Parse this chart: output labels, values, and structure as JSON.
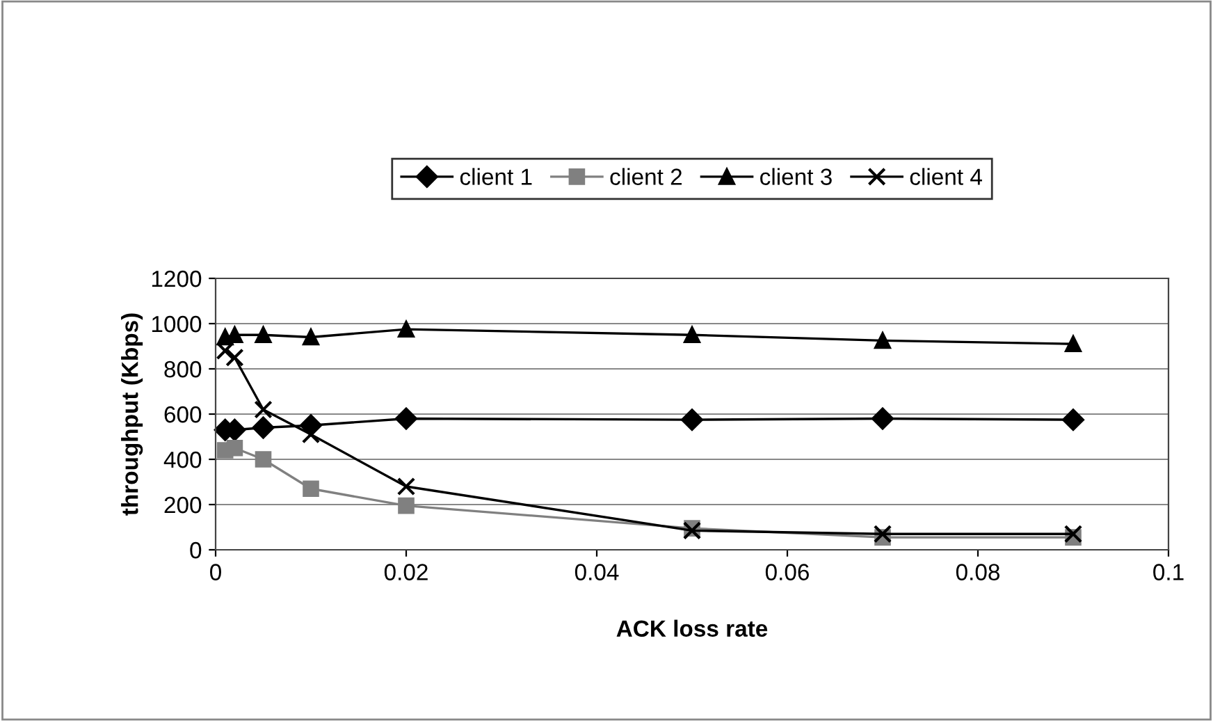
{
  "chart_data": {
    "type": "line",
    "xlabel": "ACK loss rate",
    "ylabel": "throughput (Kbps)",
    "x": [
      0.001,
      0.002,
      0.005,
      0.01,
      0.02,
      0.05,
      0.07,
      0.09
    ],
    "series": [
      {
        "name": "client 1",
        "color": "#000000",
        "marker": "diamond",
        "values": [
          530,
          530,
          540,
          550,
          580,
          575,
          580,
          575
        ]
      },
      {
        "name": "client 2",
        "color": "#808080",
        "marker": "square",
        "values": [
          440,
          450,
          400,
          270,
          195,
          95,
          55,
          55
        ]
      },
      {
        "name": "client 3",
        "color": "#000000",
        "marker": "triangle",
        "values": [
          940,
          950,
          950,
          940,
          975,
          950,
          925,
          910
        ]
      },
      {
        "name": "client 4",
        "color": "#000000",
        "marker": "cross",
        "values": [
          880,
          850,
          620,
          510,
          280,
          85,
          70,
          70
        ]
      }
    ],
    "xlim": [
      0,
      0.1
    ],
    "xticks": [
      0,
      0.02,
      0.04,
      0.06,
      0.08,
      0.1
    ],
    "ylim": [
      0,
      1200
    ],
    "yticks": [
      0,
      200,
      400,
      600,
      800,
      1000,
      1200
    ],
    "grid": "y",
    "legend": "top",
    "line_style": "solid"
  }
}
